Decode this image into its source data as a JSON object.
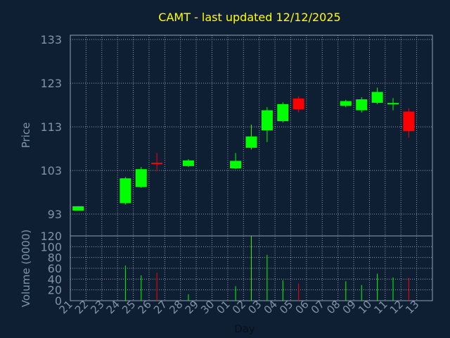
{
  "chart_data": {
    "type": "candlestick",
    "title": "CAMT - last updated 12/12/2025",
    "xlabel": "Day",
    "price_panel": {
      "ylabel": "Price",
      "ylim": [
        88,
        134
      ],
      "yticks": [
        93,
        103,
        113,
        123,
        133
      ],
      "grid": true
    },
    "volume_panel": {
      "ylabel": "Volume (0000)",
      "ylim": [
        0,
        120
      ],
      "yticks": [
        0,
        20,
        40,
        60,
        80,
        100,
        120
      ],
      "grid": true
    },
    "x_tick_labels": [
      "21",
      "22",
      "23",
      "24",
      "25",
      "26",
      "27",
      "28",
      "29",
      "30",
      "01",
      "02",
      "03",
      "04",
      "05",
      "06",
      "07",
      "08",
      "09",
      "10",
      "11",
      "12",
      "13"
    ],
    "candles": [
      {
        "slot": 0,
        "open": 93.8,
        "close": 94.8,
        "high": 94.8,
        "low": 93.8,
        "volume": 0
      },
      {
        "slot": 3,
        "open": 95.5,
        "close": 101.2,
        "high": 101.5,
        "low": 95.2,
        "volume": 65
      },
      {
        "slot": 4,
        "open": 99.2,
        "close": 103.3,
        "high": 103.8,
        "low": 99.0,
        "volume": 47
      },
      {
        "slot": 5,
        "open": 104.6,
        "close": 104.3,
        "high": 107.0,
        "low": 102.8,
        "volume": 52
      },
      {
        "slot": 7,
        "open": 104.0,
        "close": 105.3,
        "high": 105.6,
        "low": 103.8,
        "volume": 12
      },
      {
        "slot": 10,
        "open": 103.5,
        "close": 105.2,
        "high": 107.0,
        "low": 103.3,
        "volume": 27
      },
      {
        "slot": 11,
        "open": 108.2,
        "close": 110.8,
        "high": 113.5,
        "low": 107.8,
        "volume": 120
      },
      {
        "slot": 12,
        "open": 112.2,
        "close": 116.8,
        "high": 117.5,
        "low": 109.5,
        "volume": 85
      },
      {
        "slot": 13,
        "open": 114.3,
        "close": 118.2,
        "high": 118.6,
        "low": 114.0,
        "volume": 38
      },
      {
        "slot": 14,
        "open": 119.5,
        "close": 117.0,
        "high": 120.0,
        "low": 116.3,
        "volume": 32
      },
      {
        "slot": 17,
        "open": 117.8,
        "close": 118.9,
        "high": 119.2,
        "low": 117.5,
        "volume": 36
      },
      {
        "slot": 18,
        "open": 116.8,
        "close": 119.3,
        "high": 119.8,
        "low": 116.3,
        "volume": 29
      },
      {
        "slot": 19,
        "open": 118.5,
        "close": 121.0,
        "high": 122.0,
        "low": 118.2,
        "volume": 50
      },
      {
        "slot": 20,
        "open": 118.0,
        "close": 118.3,
        "high": 119.6,
        "low": 116.8,
        "volume": 43
      },
      {
        "slot": 21,
        "open": 116.5,
        "close": 112.0,
        "high": 117.3,
        "low": 110.5,
        "volume": 42
      }
    ],
    "up_color": "#00ff00",
    "down_color": "#ff0000"
  },
  "colors": {
    "background": "#0f1f33",
    "axis": "#8fa0b4",
    "grid": "#b4bcc8",
    "label": "#7f93aa",
    "title": "#ffff00"
  }
}
